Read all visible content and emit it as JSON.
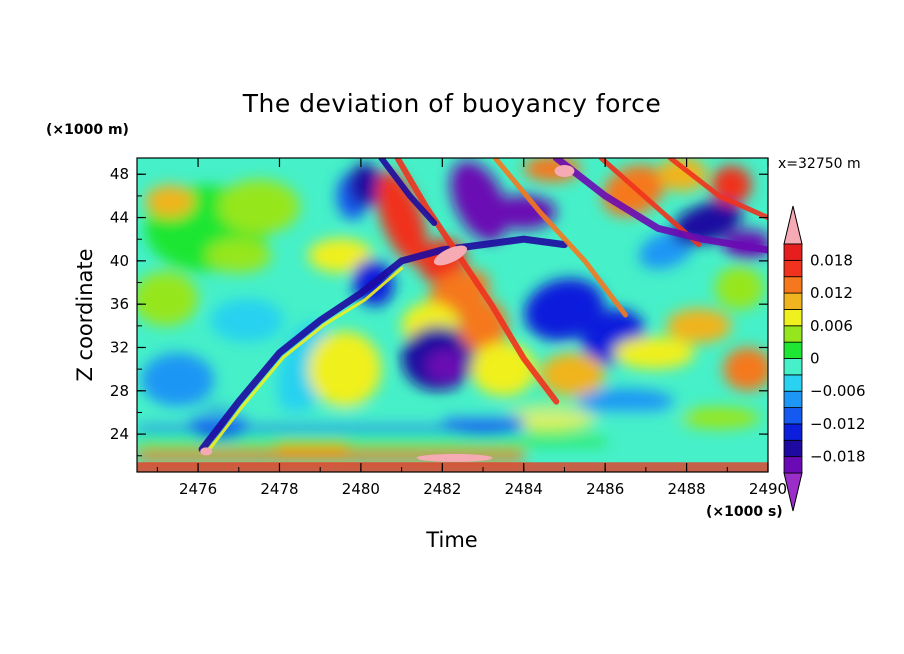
{
  "chart_data": {
    "type": "heatmap",
    "title": "The deviation of buoyancy force",
    "xlabel": "Time",
    "ylabel": "Z coordinate",
    "x_unit": "(×1000 s)",
    "y_unit": "(×1000 m)",
    "annotation": "x=32750 m",
    "xlim": [
      2474.5,
      2490
    ],
    "ylim": [
      20.5,
      49.5
    ],
    "x_ticks": [
      "2476",
      "2478",
      "2480",
      "2482",
      "2484",
      "2486",
      "2488",
      "2490"
    ],
    "y_ticks": [
      "24",
      "28",
      "32",
      "36",
      "40",
      "44",
      "48"
    ],
    "colorbar": {
      "levels": [
        -0.021,
        -0.018,
        -0.015,
        -0.012,
        -0.009,
        -0.006,
        -0.003,
        0,
        0.003,
        0.006,
        0.009,
        0.012,
        0.015,
        0.018,
        0.021
      ],
      "labels": [
        "−0.018",
        "−0.012",
        "−0.006",
        "0",
        "0.006",
        "0.012",
        "0.018"
      ],
      "colors": [
        "#9b2dc8",
        "#6a0ab4",
        "#1e0aa0",
        "#0a1edc",
        "#145af0",
        "#1e96f5",
        "#28d2f0",
        "#46f0c8",
        "#1ee632",
        "#96e61e",
        "#f0f01e",
        "#f0b41e",
        "#f5781e",
        "#f0321e",
        "#e61e1e",
        "#f5aab4"
      ]
    }
  }
}
